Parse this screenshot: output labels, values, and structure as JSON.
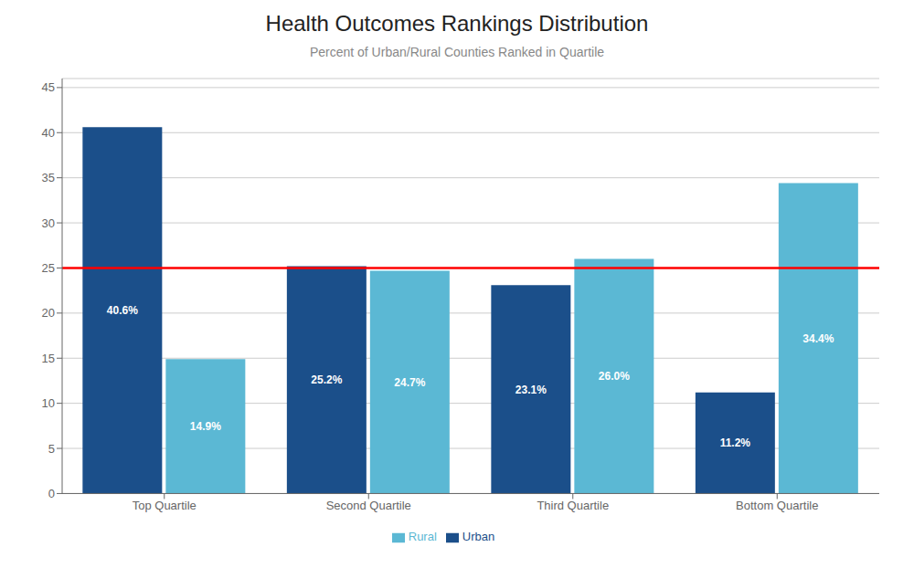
{
  "chart_data": {
    "type": "bar",
    "title": "Health Outcomes Rankings Distribution",
    "subtitle": "Percent of Urban/Rural Counties Ranked in Quartile",
    "categories": [
      "Top Quartile",
      "Second Quartile",
      "Third Quartile",
      "Bottom Quartile"
    ],
    "series": [
      {
        "name": "Urban",
        "color": "#1B4F8A",
        "values": [
          40.6,
          25.2,
          23.1,
          11.2
        ],
        "value_labels": [
          "40.6%",
          "25.2%",
          "23.1%",
          "11.2%"
        ]
      },
      {
        "name": "Rural",
        "color": "#5BB8D4",
        "values": [
          14.9,
          24.7,
          26.0,
          34.4
        ],
        "value_labels": [
          "14.9%",
          "24.7%",
          "26.0%",
          "34.4%"
        ]
      }
    ],
    "reference_lines": [
      {
        "y": 25,
        "color": "#FF0000"
      }
    ],
    "ylim": [
      0,
      46
    ],
    "yticks": [
      0,
      5,
      10,
      15,
      20,
      25,
      30,
      35,
      40,
      45
    ],
    "grid": true,
    "legend": "bottom",
    "data_labels": true
  }
}
